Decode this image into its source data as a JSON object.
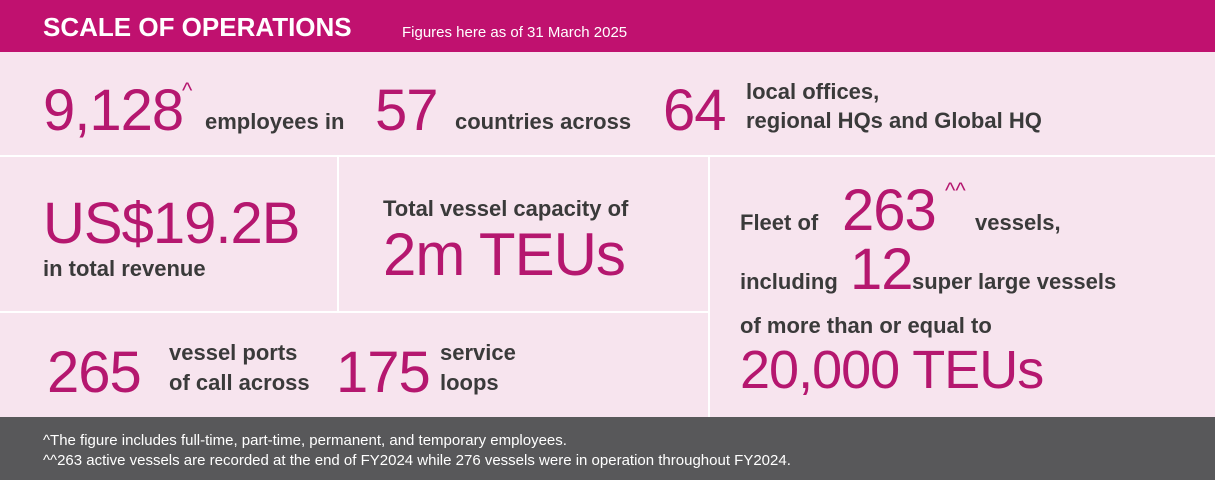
{
  "header": {
    "title": "SCALE OF OPERATIONS",
    "subtitle": "Figures here as of 31 March 2025"
  },
  "stats": {
    "employees": {
      "value": "9,128",
      "mark": "^",
      "label": "employees in"
    },
    "countries": {
      "value": "57",
      "label": "countries across"
    },
    "offices": {
      "value": "64",
      "label_lines": [
        "local offices,",
        "regional HQs and Global HQ"
      ]
    },
    "revenue": {
      "value": "US$19.2B",
      "label": "in total revenue"
    },
    "capacity": {
      "label": "Total vessel capacity of",
      "value": "2m TEUs"
    },
    "ports": {
      "value": "265",
      "label_lines": [
        "vessel ports",
        "of call across"
      ]
    },
    "loops": {
      "value": "175",
      "label_lines": [
        "service",
        "loops"
      ]
    },
    "fleet": {
      "prefix": "Fleet of",
      "value": "263",
      "mark": "^^",
      "suffix": "vessels,",
      "including": "including",
      "large_count": "12",
      "large_label": "super large vessels",
      "threshold_label": "of more than or equal to",
      "threshold": "20,000 TEUs"
    }
  },
  "footnotes": [
    "^The figure includes full-time, part-time, permanent, and temporary employees.",
    "^^263 active vessels are recorded at the end of FY2024 while 276 vessels were in operation throughout FY2024."
  ]
}
